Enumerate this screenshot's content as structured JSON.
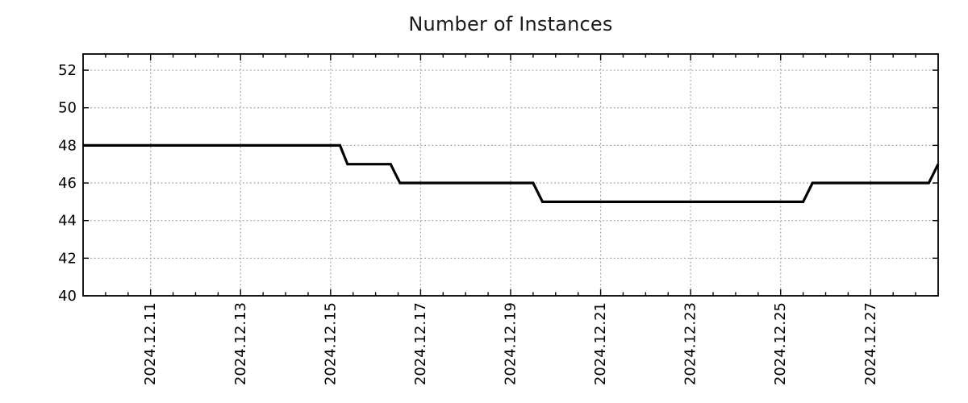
{
  "page": {
    "background": "#ffffff"
  },
  "chart_data": {
    "type": "line",
    "title": "Number of Instances",
    "xlabel": "",
    "ylabel": "",
    "legend": "none",
    "grid": true,
    "style": {
      "title_color": "#1a1a1a",
      "line_color": "#000000",
      "line_width": 3.2,
      "grid_color": "#a3a3a3",
      "axis_color": "#000000",
      "tick_label_color": "#000000",
      "tick_font_size": 18,
      "x_label_rotation_deg": -90
    },
    "x_type": "datetime",
    "xlim": [
      "2024-12-09 12:00",
      "2024-12-28 12:00"
    ],
    "ylim": [
      40,
      52.86
    ],
    "y_ticks": [
      40,
      42,
      44,
      46,
      48,
      50,
      52
    ],
    "x_major_ticks": [
      {
        "label": "2024.12.11",
        "date": "2024-12-11 00:00"
      },
      {
        "label": "2024.12.13",
        "date": "2024-12-13 00:00"
      },
      {
        "label": "2024.12.15",
        "date": "2024-12-15 00:00"
      },
      {
        "label": "2024.12.17",
        "date": "2024-12-17 00:00"
      },
      {
        "label": "2024.12.19",
        "date": "2024-12-19 00:00"
      },
      {
        "label": "2024.12.21",
        "date": "2024-12-21 00:00"
      },
      {
        "label": "2024.12.23",
        "date": "2024-12-23 00:00"
      },
      {
        "label": "2024.12.25",
        "date": "2024-12-25 00:00"
      },
      {
        "label": "2024.12.27",
        "date": "2024-12-27 00:00"
      }
    ],
    "x_minor_tick_interval_hours": 12,
    "series": [
      {
        "name": "instances",
        "points": [
          [
            "2024-12-09 12:00",
            48
          ],
          [
            "2024-12-15 05:00",
            48
          ],
          [
            "2024-12-15 09:00",
            47
          ],
          [
            "2024-12-16 08:00",
            47
          ],
          [
            "2024-12-16 13:00",
            46
          ],
          [
            "2024-12-19 12:00",
            46
          ],
          [
            "2024-12-19 17:00",
            45
          ],
          [
            "2024-12-25 12:00",
            45
          ],
          [
            "2024-12-25 17:00",
            46
          ],
          [
            "2024-12-28 07:00",
            46
          ],
          [
            "2024-12-28 12:00",
            47
          ]
        ]
      }
    ]
  }
}
